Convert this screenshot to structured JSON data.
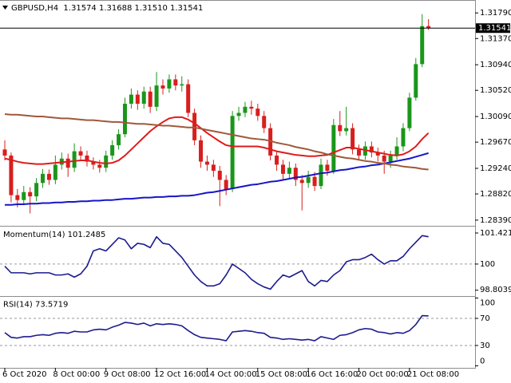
{
  "chart_data": [
    {
      "type": "candlestick",
      "title": "GBPUSD,H4  1.31574 1.31688 1.31510 1.31541",
      "categories": [
        "6 Oct 2020",
        null,
        null,
        null,
        null,
        null,
        null,
        null,
        "8 Oct 00:00",
        null,
        null,
        null,
        null,
        null,
        null,
        null,
        "9 Oct 08:00",
        null,
        null,
        null,
        null,
        null,
        null,
        null,
        "12 Oct 16:00",
        null,
        null,
        null,
        null,
        null,
        null,
        null,
        "14 Oct 00:00",
        null,
        null,
        null,
        null,
        null,
        null,
        null,
        "15 Oct 08:00",
        null,
        null,
        null,
        null,
        null,
        null,
        null,
        "16 Oct 16:00",
        null,
        null,
        null,
        null,
        null,
        null,
        null,
        "20 Oct 00:00",
        null,
        null,
        null,
        null,
        null,
        null,
        null,
        "21 Oct 08:00",
        null,
        null,
        null
      ],
      "open": [
        1.2955,
        1.2945,
        1.288,
        1.2872,
        1.2885,
        1.2878,
        1.29,
        1.2915,
        1.2905,
        1.293,
        1.294,
        1.2925,
        1.2952,
        1.2945,
        1.2935,
        1.293,
        1.2925,
        1.2945,
        1.2962,
        1.298,
        1.303,
        1.3045,
        1.303,
        1.305,
        1.3025,
        1.306,
        1.3055,
        1.307,
        1.306,
        1.3062,
        1.3015,
        1.297,
        1.2935,
        1.293,
        1.292,
        1.2905,
        1.289,
        1.301,
        1.3015,
        1.3025,
        1.3022,
        1.301,
        1.299,
        1.2945,
        1.293,
        1.2915,
        1.2925,
        1.2905,
        1.29,
        1.291,
        1.2895,
        1.293,
        1.292,
        1.2995,
        1.2985,
        1.299,
        1.2955,
        1.2945,
        1.296,
        1.295,
        1.2945,
        1.2935,
        1.2945,
        1.296,
        1.299,
        1.304,
        1.3095,
        1.31574
      ],
      "high": [
        1.297,
        1.295,
        1.289,
        1.2895,
        1.2893,
        1.2908,
        1.2923,
        1.2922,
        1.2945,
        1.295,
        1.2948,
        1.2965,
        1.296,
        1.2953,
        1.2942,
        1.2938,
        1.2953,
        1.297,
        1.2988,
        1.304,
        1.3055,
        1.3052,
        1.3058,
        1.3058,
        1.3082,
        1.307,
        1.3078,
        1.3078,
        1.3075,
        1.307,
        1.3022,
        1.2978,
        1.2945,
        1.2938,
        1.2928,
        1.2913,
        1.3018,
        1.3025,
        1.3033,
        1.3035,
        1.303,
        1.3018,
        1.2998,
        1.2953,
        1.2938,
        1.2935,
        1.2932,
        1.2913,
        1.292,
        1.2918,
        1.294,
        1.2938,
        1.3005,
        1.3018,
        1.3025,
        1.2998,
        1.2963,
        1.2968,
        1.2968,
        1.2958,
        1.2953,
        1.2953,
        1.2975,
        1.2998,
        1.3048,
        1.3105,
        1.3177,
        1.31688
      ],
      "low": [
        1.2937,
        1.2868,
        1.286,
        1.2864,
        1.285,
        1.287,
        1.2892,
        1.2897,
        1.2898,
        1.2922,
        1.291,
        1.2918,
        1.2937,
        1.2927,
        1.2922,
        1.2917,
        1.2918,
        1.2938,
        1.2955,
        1.2975,
        1.3022,
        1.302,
        1.3022,
        1.3015,
        1.3018,
        1.3045,
        1.3048,
        1.3052,
        1.305,
        1.3008,
        1.2962,
        1.2925,
        1.292,
        1.291,
        1.2862,
        1.288,
        1.2885,
        1.3002,
        1.3008,
        1.3012,
        1.3002,
        1.2982,
        1.2937,
        1.292,
        1.2905,
        1.2906,
        1.2895,
        1.2855,
        1.2892,
        1.2887,
        1.289,
        1.2912,
        1.2915,
        1.2977,
        1.2978,
        1.2947,
        1.2937,
        1.2938,
        1.2942,
        1.2935,
        1.2915,
        1.2925,
        1.2938,
        1.2952,
        1.2985,
        1.3035,
        1.309,
        1.3151
      ],
      "close": [
        1.2945,
        1.288,
        1.2872,
        1.2885,
        1.2878,
        1.29,
        1.2915,
        1.2905,
        1.293,
        1.294,
        1.2925,
        1.2952,
        1.2945,
        1.2935,
        1.293,
        1.2925,
        1.2945,
        1.2962,
        1.298,
        1.303,
        1.3045,
        1.303,
        1.305,
        1.3025,
        1.306,
        1.3055,
        1.307,
        1.306,
        1.3062,
        1.3015,
        1.297,
        1.2935,
        1.293,
        1.292,
        1.2905,
        1.289,
        1.301,
        1.3015,
        1.3025,
        1.3022,
        1.301,
        1.299,
        1.2945,
        1.293,
        1.2915,
        1.2925,
        1.2905,
        1.29,
        1.291,
        1.2895,
        1.293,
        1.292,
        1.2995,
        1.2985,
        1.299,
        1.2955,
        1.2945,
        1.296,
        1.295,
        1.2945,
        1.2935,
        1.2945,
        1.296,
        1.299,
        1.304,
        1.3095,
        1.31574,
        1.31541
      ],
      "up_color": "#1a961a",
      "down_color": "#d81e1e",
      "overlays": [
        {
          "color": "#e01b1b",
          "values": [
            1.294,
            1.2938,
            1.2935,
            1.2933,
            1.2932,
            1.2931,
            1.2931,
            1.2932,
            1.2933,
            1.2934,
            1.2935,
            1.2936,
            1.2937,
            1.2937,
            1.2935,
            1.2933,
            1.2932,
            1.2933,
            1.2937,
            1.2945,
            1.2955,
            1.2965,
            1.2975,
            1.2985,
            1.2993,
            1.3,
            1.3006,
            1.3008,
            1.3008,
            1.3004,
            1.2998,
            1.299,
            1.2982,
            1.2975,
            1.2968,
            1.2962,
            1.296,
            1.296,
            1.296,
            1.296,
            1.296,
            1.2958,
            1.2955,
            1.2952,
            1.295,
            1.2948,
            1.2946,
            1.2945,
            1.2944,
            1.2944,
            1.2945,
            1.2946,
            1.295,
            1.2954,
            1.2958,
            1.2958,
            1.2956,
            1.2954,
            1.2952,
            1.295,
            1.2948,
            1.2946,
            1.2945,
            1.2947,
            1.2952,
            1.296,
            1.2972,
            1.2982
          ]
        },
        {
          "color": "#1616c8",
          "values": [
            1.2864,
            1.2864,
            1.2865,
            1.2865,
            1.2866,
            1.2866,
            1.2867,
            1.2867,
            1.2868,
            1.2868,
            1.2869,
            1.2869,
            1.287,
            1.287,
            1.2871,
            1.2871,
            1.2872,
            1.2872,
            1.2873,
            1.2874,
            1.2874,
            1.2875,
            1.2876,
            1.2876,
            1.2877,
            1.2877,
            1.2878,
            1.2878,
            1.2879,
            1.2879,
            1.288,
            1.2882,
            1.2884,
            1.2885,
            1.2887,
            1.2889,
            1.2891,
            1.2893,
            1.2895,
            1.2897,
            1.2898,
            1.29,
            1.2902,
            1.2903,
            1.2905,
            1.2907,
            1.2909,
            1.291,
            1.2912,
            1.2914,
            1.2916,
            1.2917,
            1.2919,
            1.2921,
            1.2922,
            1.2924,
            1.2926,
            1.2927,
            1.2929,
            1.293,
            1.2932,
            1.2934,
            1.2936,
            1.2938,
            1.294,
            1.2943,
            1.2946,
            1.2949
          ]
        },
        {
          "color": "#a0583a",
          "values": [
            1.3013,
            1.3012,
            1.3012,
            1.3011,
            1.301,
            1.3009,
            1.3009,
            1.3008,
            1.3007,
            1.3006,
            1.3006,
            1.3005,
            1.3004,
            1.3003,
            1.3003,
            1.3002,
            1.3001,
            1.3,
            1.3,
            1.2999,
            1.2998,
            1.2997,
            1.2997,
            1.2996,
            1.2995,
            1.2994,
            1.2994,
            1.2993,
            1.2992,
            1.2991,
            1.2991,
            1.2989,
            1.2987,
            1.2985,
            1.2983,
            1.2981,
            1.2979,
            1.2977,
            1.2975,
            1.2973,
            1.2972,
            1.2971,
            1.2969,
            1.2966,
            1.2964,
            1.2962,
            1.2959,
            1.2957,
            1.2955,
            1.2952,
            1.295,
            1.2947,
            1.2945,
            1.2943,
            1.2941,
            1.294,
            1.2938,
            1.2936,
            1.2935,
            1.2933,
            1.2932,
            1.293,
            1.2929,
            1.2927,
            1.2926,
            1.2925,
            1.2923,
            1.2922
          ]
        }
      ],
      "current_price": {
        "value": 1.31541,
        "label": "1.31541"
      },
      "ylim": [
        1.2831,
        1.3195
      ],
      "yticks": [
        {
          "value": 1.3179,
          "label": "1.31790"
        },
        {
          "value": 1.3137,
          "label": "1.31370"
        },
        {
          "value": 1.3094,
          "label": "1.30940"
        },
        {
          "value": 1.3052,
          "label": "1.30520"
        },
        {
          "value": 1.3009,
          "label": "1.30090"
        },
        {
          "value": 1.2967,
          "label": "1.29670"
        },
        {
          "value": 1.2924,
          "label": "1.29240"
        },
        {
          "value": 1.2882,
          "label": "1.28820"
        },
        {
          "value": 1.2839,
          "label": "1.28390"
        }
      ]
    },
    {
      "type": "line",
      "title": "Momentum(14) 101.2485",
      "color": "#1b1b8f",
      "values": [
        99.9,
        99.6,
        99.6,
        99.6,
        99.55,
        99.6,
        99.6,
        99.6,
        99.5,
        99.5,
        99.55,
        99.4,
        99.55,
        99.9,
        100.6,
        100.7,
        100.6,
        100.9,
        101.2,
        101.1,
        100.7,
        100.95,
        100.9,
        100.75,
        101.25,
        100.95,
        100.9,
        100.6,
        100.3,
        99.9,
        99.5,
        99.2,
        99.0,
        99.0,
        99.1,
        99.5,
        100.0,
        99.8,
        99.6,
        99.3,
        99.1,
        98.95,
        98.85,
        99.2,
        99.5,
        99.4,
        99.55,
        99.7,
        99.2,
        99.0,
        99.25,
        99.2,
        99.5,
        99.7,
        100.1,
        100.2,
        100.2,
        100.3,
        100.45,
        100.2,
        100.0,
        100.15,
        100.15,
        100.35,
        100.7,
        101.0,
        101.3,
        101.2485
      ],
      "levels": [
        100
      ],
      "ylim": [
        98.61,
        101.64
      ],
      "yticks": [
        101.421,
        100,
        98.8039
      ]
    },
    {
      "type": "line",
      "title": "RSI(14) 73.5719",
      "color": "#1b1b8f",
      "values": [
        49,
        42,
        41,
        43,
        43,
        45,
        46,
        45,
        48,
        49,
        48,
        51,
        50,
        50,
        53,
        54,
        53,
        57,
        60,
        64,
        63,
        61,
        63,
        59,
        62,
        61,
        62,
        61,
        59,
        52,
        46,
        42,
        41,
        40,
        39,
        37,
        50,
        51,
        52,
        51,
        49,
        48,
        42,
        41,
        39,
        40,
        39,
        38,
        39,
        37,
        43,
        41,
        39,
        45,
        46,
        49,
        53,
        55,
        54,
        50,
        49,
        47,
        49,
        48,
        52,
        61,
        74,
        73.5719
      ],
      "levels": [
        70,
        30
      ],
      "ylim": [
        0,
        100
      ],
      "yticks": [
        100,
        70,
        30,
        0
      ]
    }
  ]
}
